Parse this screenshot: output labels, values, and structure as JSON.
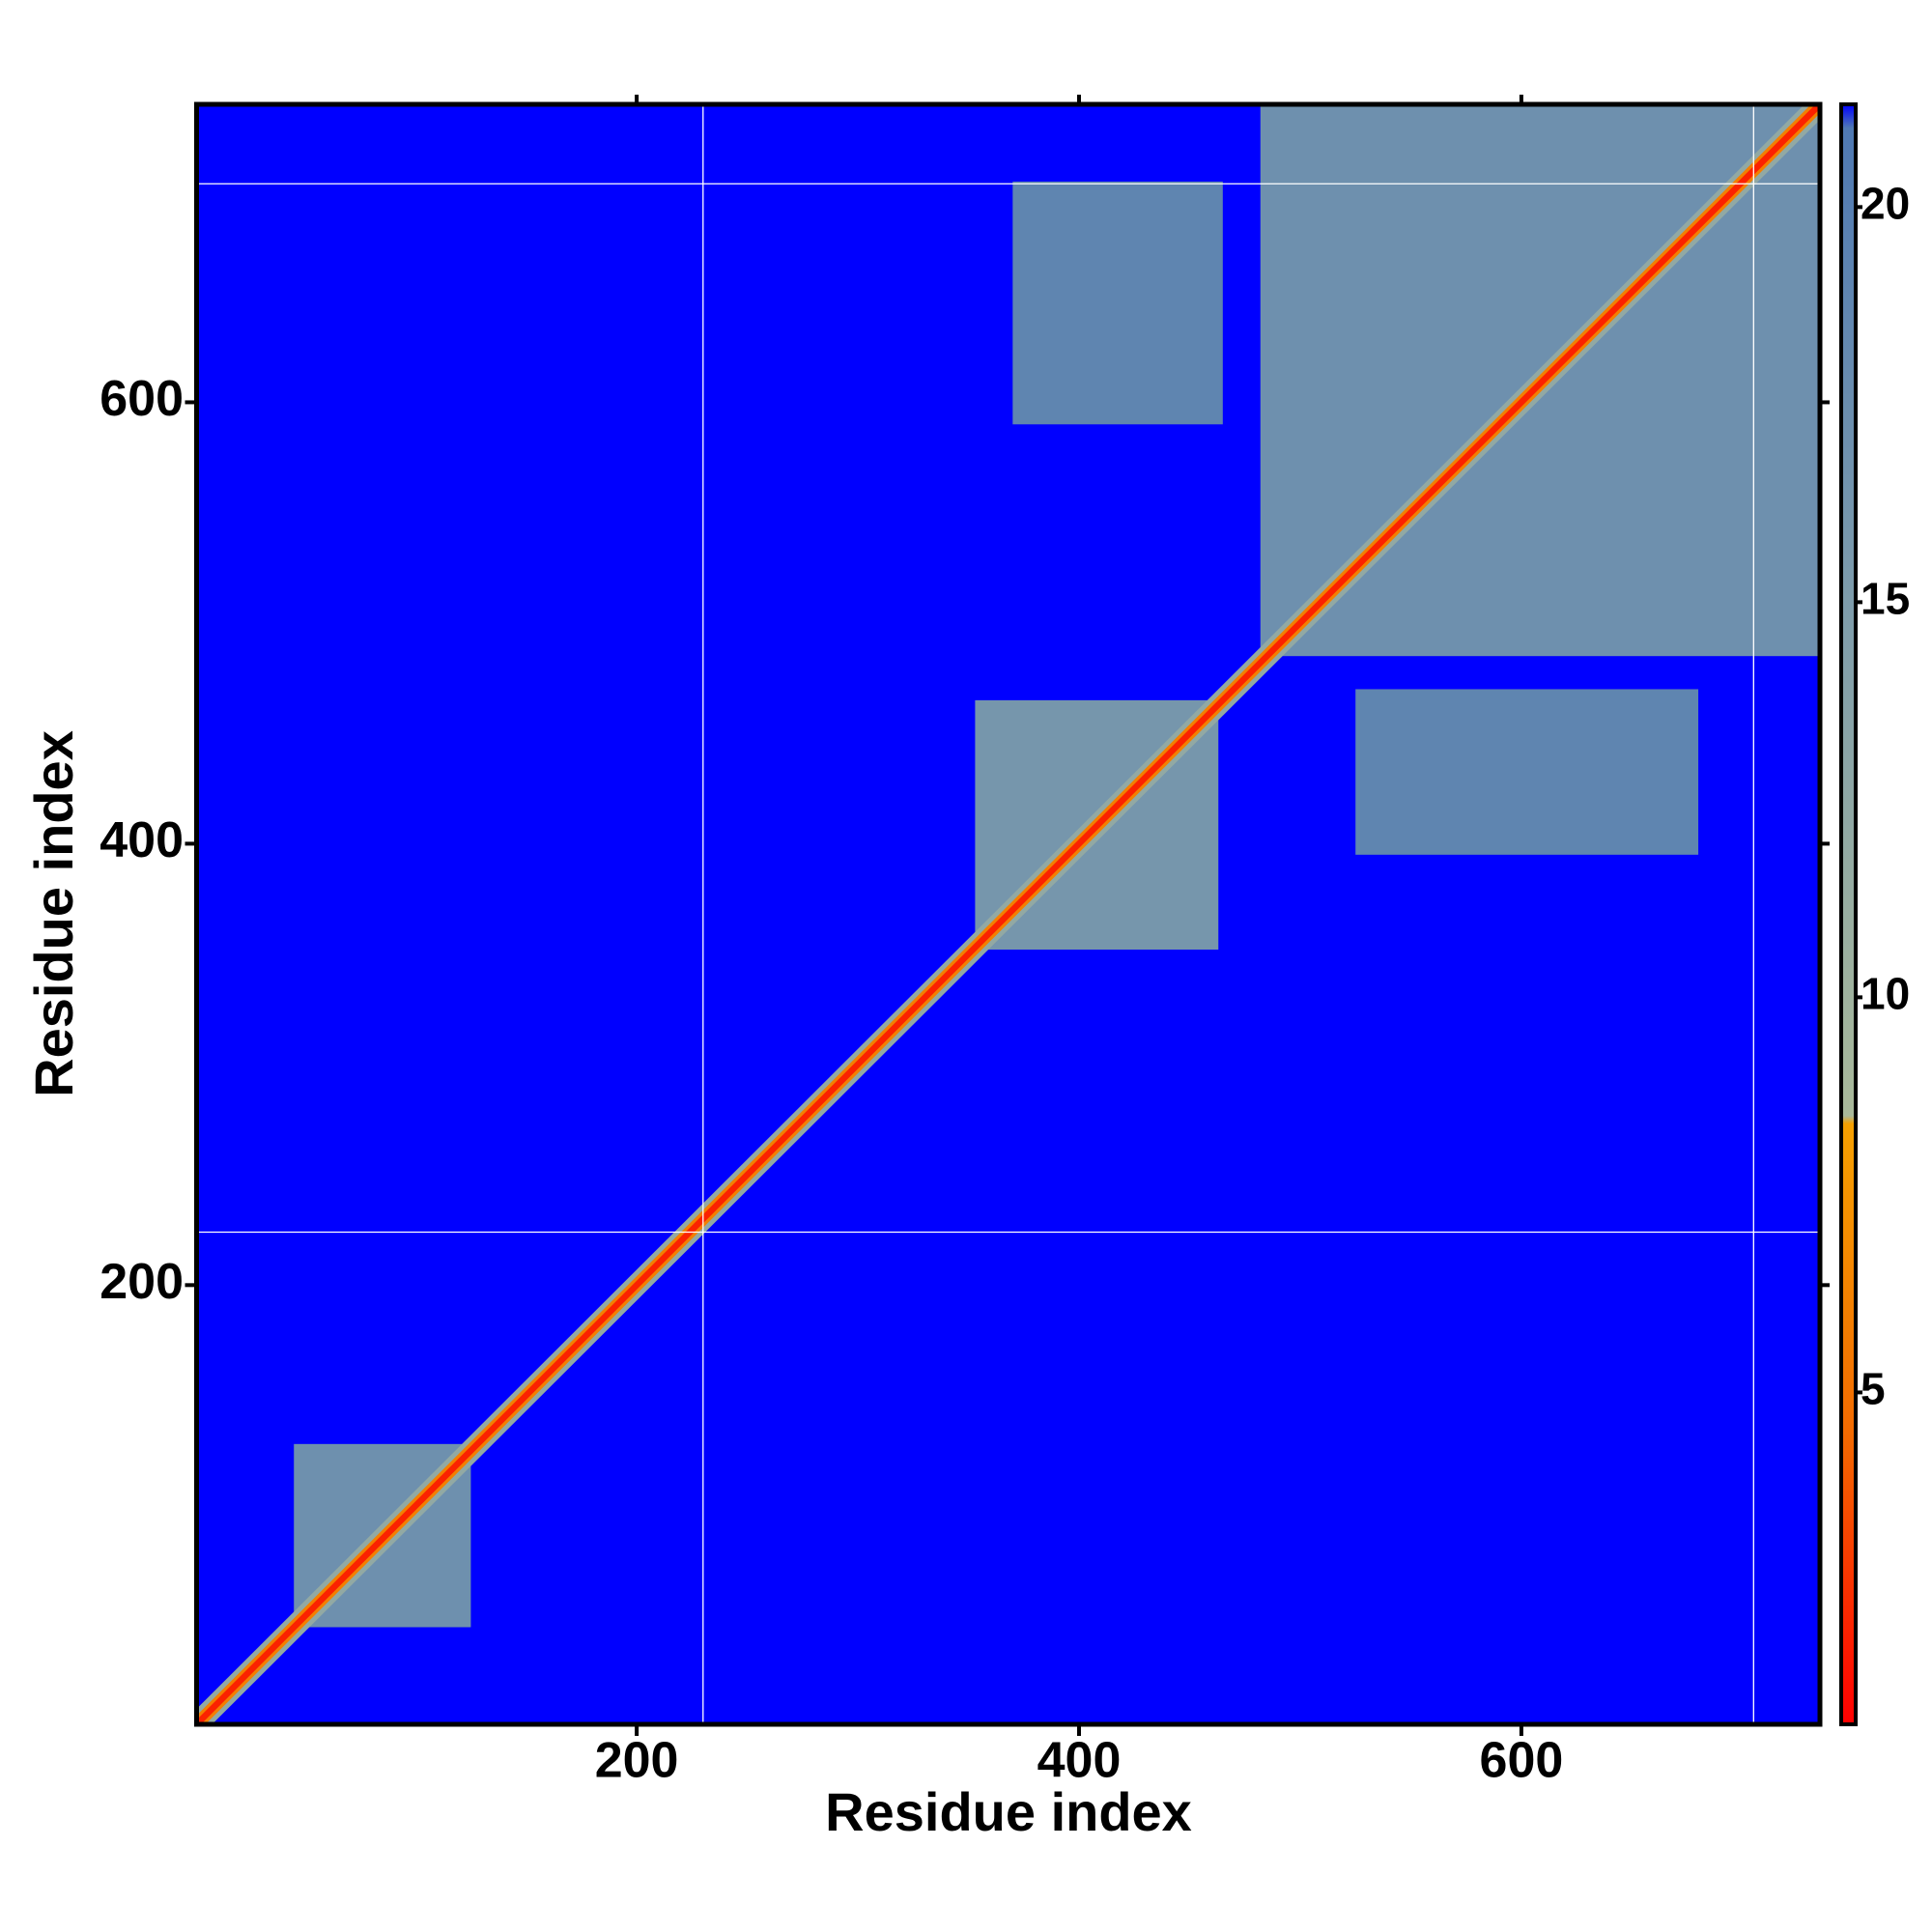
{
  "chart_data": {
    "type": "heatmap",
    "x_label": "Residue index",
    "y_label": "Residue index",
    "xlim": [
      1,
      735
    ],
    "ylim": [
      1,
      735
    ],
    "xticks": [
      200,
      400,
      600
    ],
    "yticks": [
      200,
      400,
      600
    ],
    "clim": [
      0.8,
      21.3
    ],
    "cticks": [
      5,
      10,
      15,
      20
    ],
    "colorscale": [
      {
        "value": 0.8,
        "color": "#ff0000"
      },
      {
        "value": 4.5,
        "color": "#f26a00"
      },
      {
        "value": 8.4,
        "color": "#f5a000"
      },
      {
        "value": 8.5,
        "color": "#a9b99a"
      },
      {
        "value": 15,
        "color": "#7e9cab"
      },
      {
        "value": 21,
        "color": "#4f79b3"
      },
      {
        "value": 21.3,
        "color": "#0000ff"
      }
    ],
    "regions": [
      {
        "x": [
          45,
          125
        ],
        "y": [
          45,
          128
        ],
        "value": 17
      },
      {
        "x": [
          353,
          463
        ],
        "y": [
          352,
          465
        ],
        "value": 16
      },
      {
        "x": [
          482,
          735
        ],
        "y": [
          485,
          735
        ],
        "value": 17
      },
      {
        "x": [
          370,
          465
        ],
        "y": [
          590,
          700
        ],
        "value": 19
      },
      {
        "x": [
          525,
          680
        ],
        "y": [
          395,
          470
        ],
        "value": 19
      }
    ],
    "diagonal_bands": [
      {
        "offset": 7,
        "value": 12
      },
      {
        "offset": 4,
        "value": 6
      },
      {
        "offset": 2,
        "value": 2
      }
    ],
    "vlines": [
      230,
      705
    ],
    "hlines": [
      224,
      699
    ]
  }
}
